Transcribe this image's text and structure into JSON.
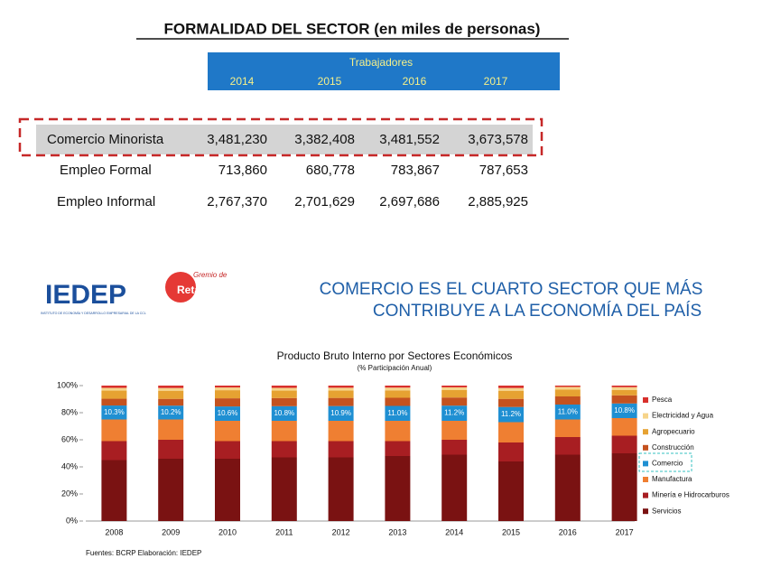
{
  "title": "FORMALIDAD DEL SECTOR (en miles de personas)",
  "table": {
    "header": "Trabajadores",
    "columns": [
      "2014",
      "2015",
      "2016",
      "2017"
    ],
    "rows": [
      {
        "label": "Comercio Minorista",
        "values": [
          "3,481,230",
          "3,382,408",
          "3,481,552",
          "3,673,578"
        ]
      },
      {
        "label": "Empleo Formal",
        "values": [
          "713,860",
          "680,778",
          "783,867",
          "787,653"
        ]
      },
      {
        "label": "Empleo Informal",
        "values": [
          "2,767,370",
          "2,701,629",
          "2,697,686",
          "2,885,925"
        ]
      }
    ]
  },
  "logos": {
    "iedep": "IEDEP",
    "iedep_sub": "INSTITUTO DE ECONOMÍA Y DESARROLLO EMPRESARIAL DE LA CCL",
    "gremio": "Gremio de",
    "retail": "Retail"
  },
  "headline": [
    "COMERCIO ES EL CUARTO SECTOR QUE MÁS",
    "CONTRIBUYE A LA ECONOMÍA DEL PAÍS"
  ],
  "source": "Fuentes: BCRP  Elaboración: IEDEP",
  "chart_data": {
    "type": "stacked_bar",
    "title": "Producto Bruto Interno por Sectores Económicos",
    "subtitle": "(% Participación Anual)",
    "categories": [
      "2008",
      "2009",
      "2010",
      "2011",
      "2012",
      "2013",
      "2014",
      "2015",
      "2016",
      "2017"
    ],
    "ylim": [
      0,
      100
    ],
    "yticks": [
      {
        "value": 0,
        "label": "0%"
      },
      {
        "value": 20,
        "label": "20%"
      },
      {
        "value": 40,
        "label": "40%"
      },
      {
        "value": 60,
        "label": "60%"
      },
      {
        "value": 80,
        "label": "80%"
      },
      {
        "value": 100,
        "label": "100%"
      }
    ],
    "legend": "right",
    "series": [
      {
        "name": "Servicios",
        "color": "#7a1212",
        "values": [
          45,
          46,
          46,
          47,
          47,
          48,
          49,
          44,
          49,
          50
        ]
      },
      {
        "name": "Minería e Hidrocarburos",
        "color": "#a81e22",
        "values": [
          14,
          14,
          13,
          12,
          12,
          11,
          11,
          14,
          13,
          13
        ]
      },
      {
        "name": "Manufactura",
        "color": "#ef7f32",
        "values": [
          16,
          15,
          15,
          15,
          15,
          15,
          14,
          15,
          13,
          13
        ]
      },
      {
        "name": "Comercio",
        "color": "#1f8fd2",
        "values": [
          10.3,
          10.2,
          10.6,
          10.8,
          10.9,
          11.0,
          11.2,
          11.2,
          11.0,
          10.8
        ],
        "value_labels": [
          "10.3%",
          "10.2%",
          "10.6%",
          "10.8%",
          "10.9%",
          "11.0%",
          "11.2%",
          "11.2%",
          "11.0%",
          "10.8%"
        ]
      },
      {
        "name": "Construcción",
        "color": "#c4521f",
        "values": [
          5,
          5,
          6,
          6,
          6,
          6,
          6,
          6,
          6,
          6
        ]
      },
      {
        "name": "Agropecuario",
        "color": "#e6a232",
        "values": [
          6,
          6,
          6,
          5.5,
          5.5,
          5.5,
          5.5,
          6,
          5,
          4
        ]
      },
      {
        "name": "Electricidad y Agua",
        "color": "#f6d48a",
        "values": [
          2,
          2,
          2,
          2,
          2,
          2,
          2,
          2,
          2,
          2
        ]
      },
      {
        "name": "Pesca",
        "color": "#d8302c",
        "values": [
          1.7,
          1.8,
          1.4,
          1.7,
          1.6,
          1.5,
          1.3,
          1.8,
          1,
          1.2
        ]
      }
    ]
  }
}
